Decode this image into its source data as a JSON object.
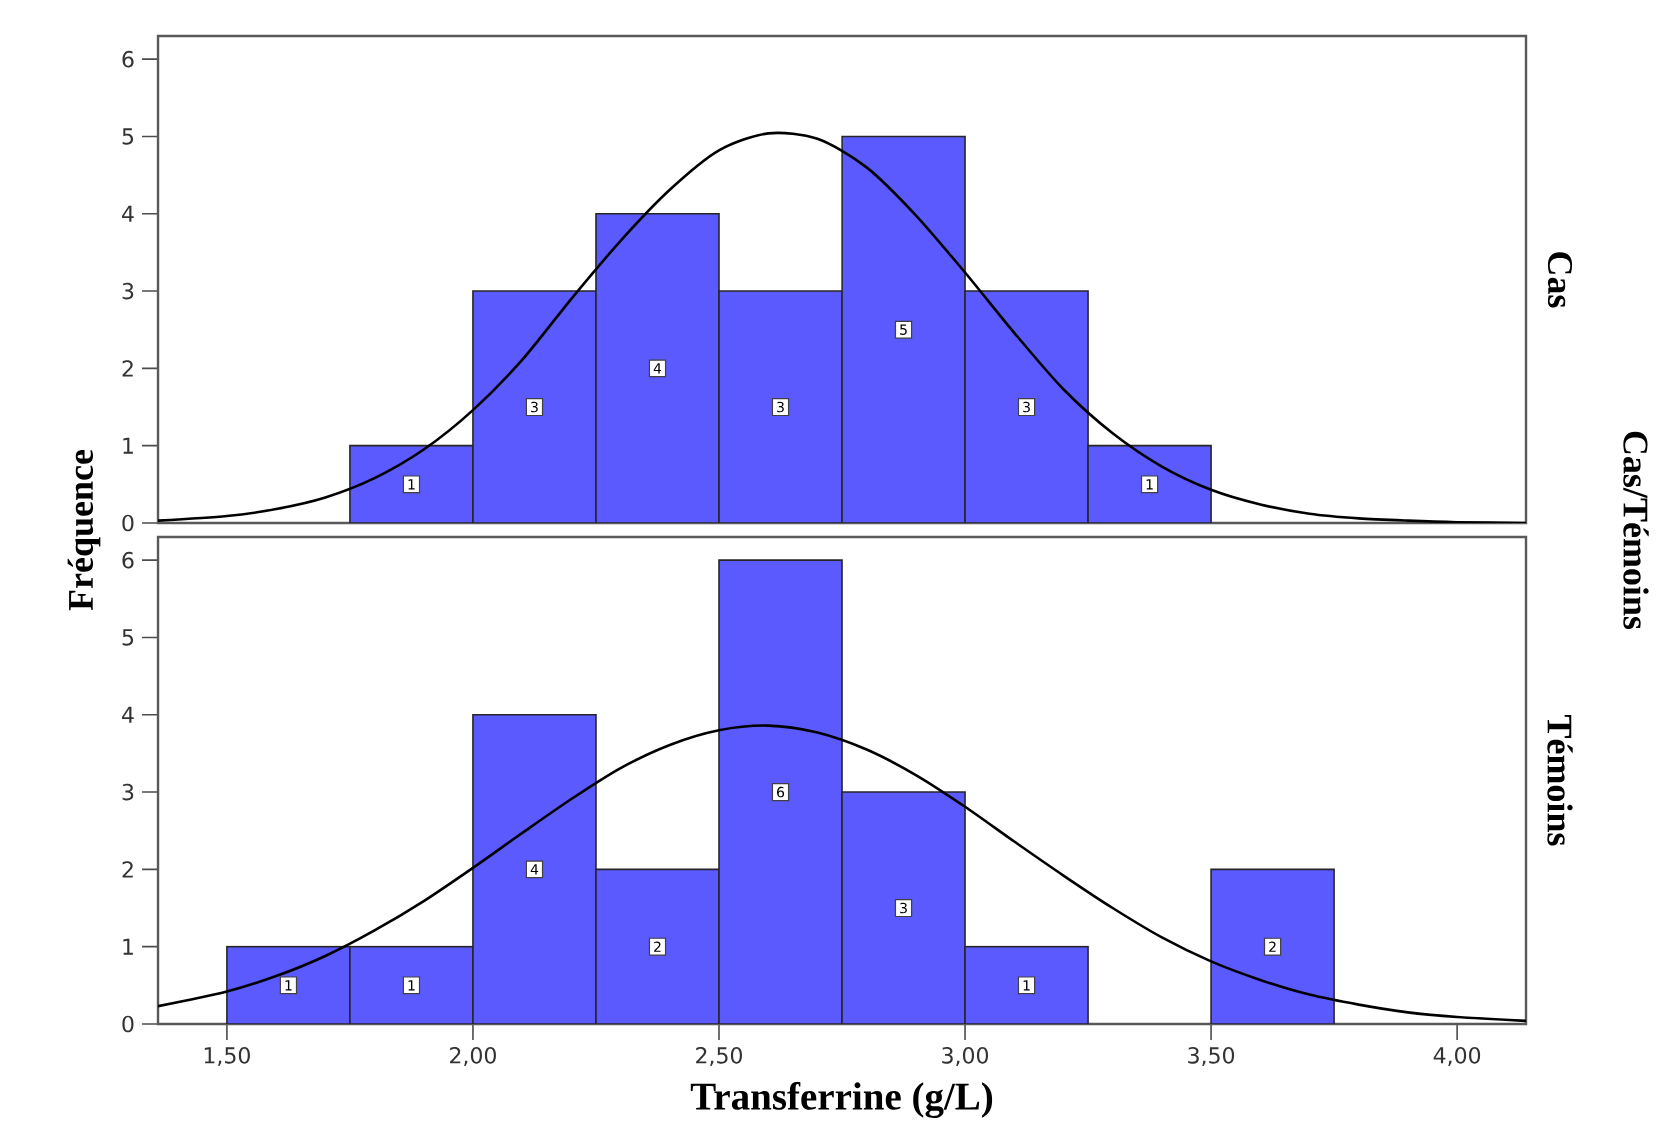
{
  "chart_data": [
    {
      "type": "histogram",
      "y2label": "Cas",
      "ylabel": "Fréquence",
      "annotations": [
        "Cas/Témoins"
      ],
      "xlim": [
        1.36,
        4.14
      ],
      "ylim": [
        0,
        6.3
      ],
      "yticks": [
        0,
        1,
        2,
        3,
        4,
        5,
        6
      ],
      "tick_labels": "y",
      "series": [
        {
          "color": "#5a5aff",
          "bins": [
            1.75,
            2.0,
            2.25,
            2.5,
            2.75,
            3.0,
            3.25,
            3.5
          ],
          "values": [
            1,
            3,
            4,
            3,
            5,
            3,
            1
          ],
          "value_labels": [
            "1",
            "3",
            "4",
            "3",
            "5",
            "3",
            "1"
          ]
        },
        {
          "type": "line",
          "color": "#000000",
          "x": [
            1.36,
            1.5,
            1.6,
            1.7,
            1.8,
            1.9,
            2.0,
            2.1,
            2.2,
            2.3,
            2.4,
            2.5,
            2.6,
            2.7,
            2.8,
            2.9,
            3.0,
            3.1,
            3.2,
            3.3,
            3.4,
            3.5,
            3.6,
            3.7,
            3.8,
            3.9,
            4.0,
            4.14
          ],
          "values": [
            0.03,
            0.09,
            0.18,
            0.33,
            0.58,
            0.95,
            1.46,
            2.11,
            2.9,
            3.65,
            4.31,
            4.82,
            5.04,
            4.97,
            4.6,
            3.98,
            3.24,
            2.46,
            1.73,
            1.16,
            0.73,
            0.43,
            0.24,
            0.12,
            0.06,
            0.03,
            0.01,
            0.0
          ]
        }
      ]
    },
    {
      "type": "histogram",
      "y2label": "Témoins",
      "xlabel": "Transferrine (g/L)",
      "xlim": [
        1.36,
        4.14
      ],
      "ylim": [
        0,
        6.3
      ],
      "yticks": [
        0,
        1,
        2,
        3,
        4,
        5,
        6
      ],
      "xticks": [
        {
          "value": 1.5,
          "label": "1,50"
        },
        {
          "value": 2.0,
          "label": "2,00"
        },
        {
          "value": 2.5,
          "label": "2,50"
        },
        {
          "value": 3.0,
          "label": "3,00"
        },
        {
          "value": 3.5,
          "label": "3,50"
        },
        {
          "value": 4.0,
          "label": "4,00"
        }
      ],
      "series": [
        {
          "color": "#5a5aff",
          "bins": [
            1.5,
            1.75,
            2.0,
            2.25,
            2.5,
            2.75,
            3.0,
            3.25,
            3.5,
            3.75
          ],
          "values": [
            1,
            1,
            4,
            2,
            6,
            3,
            1,
            0,
            2
          ],
          "value_labels": [
            "1",
            "1",
            "4",
            "2",
            "6",
            "3",
            "1",
            null,
            "2"
          ]
        },
        {
          "type": "line",
          "color": "#000000",
          "x": [
            1.36,
            1.5,
            1.6,
            1.7,
            1.8,
            1.9,
            2.0,
            2.1,
            2.2,
            2.3,
            2.4,
            2.5,
            2.6,
            2.7,
            2.8,
            2.9,
            3.0,
            3.1,
            3.2,
            3.3,
            3.4,
            3.5,
            3.6,
            3.7,
            3.8,
            3.9,
            4.0,
            4.14
          ],
          "values": [
            0.23,
            0.42,
            0.62,
            0.88,
            1.21,
            1.59,
            2.02,
            2.47,
            2.91,
            3.31,
            3.61,
            3.8,
            3.86,
            3.77,
            3.55,
            3.22,
            2.81,
            2.36,
            1.92,
            1.5,
            1.12,
            0.81,
            0.57,
            0.38,
            0.25,
            0.15,
            0.09,
            0.04
          ]
        }
      ]
    }
  ]
}
